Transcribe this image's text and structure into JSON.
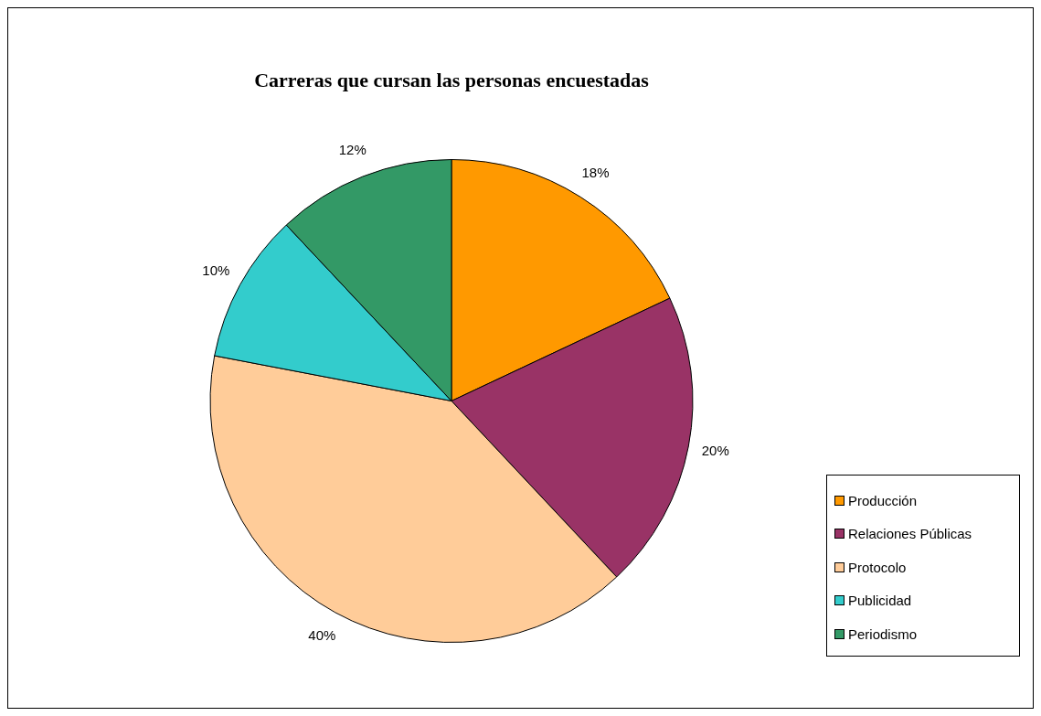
{
  "chart_data": {
    "type": "pie",
    "title": "Carreras que cursan las personas encuestadas",
    "categories": [
      "Producción",
      "Relaciones Públicas",
      "Protocolo",
      "Publicidad",
      "Periodismo"
    ],
    "values": [
      18,
      20,
      40,
      10,
      12
    ],
    "colors": [
      "#ff9900",
      "#993366",
      "#ffcc99",
      "#33cccc",
      "#339966"
    ],
    "value_labels": [
      "18%",
      "20%",
      "40%",
      "10%",
      "12%"
    ],
    "legend": "right"
  }
}
